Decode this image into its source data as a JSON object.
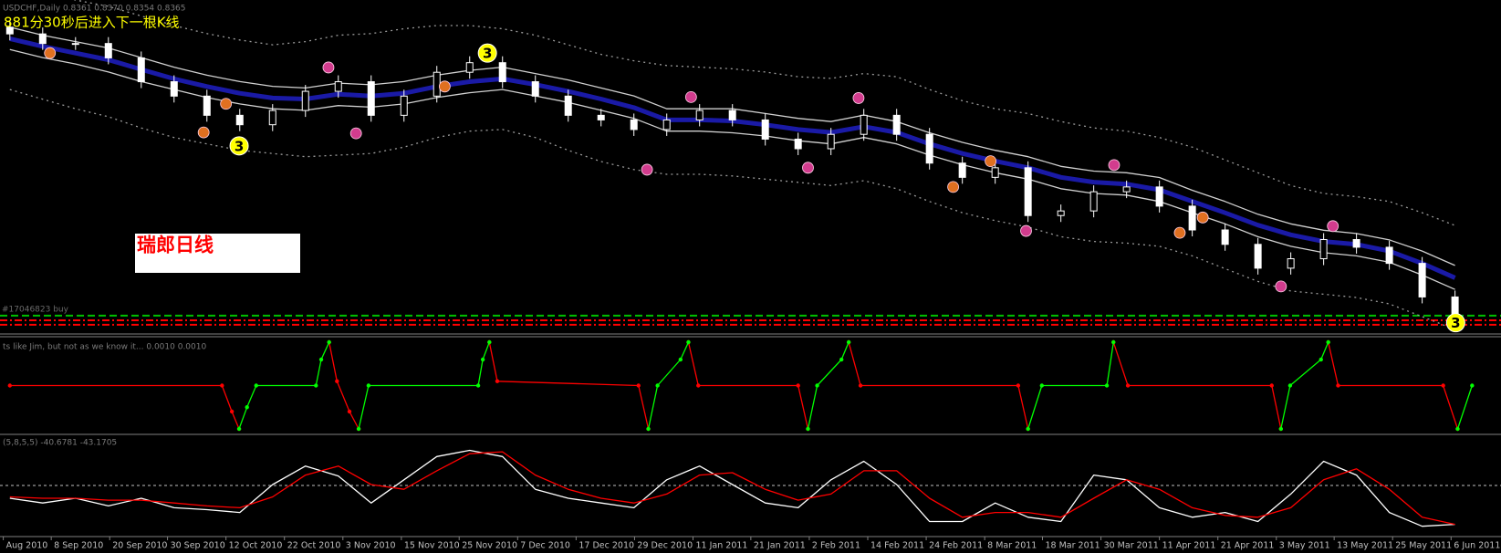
{
  "chart_data": [
    {
      "type": "candlestick",
      "title": "USDCHF,Daily  0.8361 0.8370 0.8354 0.8365",
      "annotations": [
        "881分30秒后进入下一根K线",
        "瑞郎日线"
      ],
      "level_label": "#17046823 buy",
      "xlim": [
        -1.5,
        227
      ],
      "ylim": [
        0.82,
        1.026
      ],
      "color": "#ffffff",
      "x": [
        0,
        5,
        10,
        15,
        20,
        25,
        30,
        35,
        40,
        45,
        50,
        55,
        60,
        65,
        70,
        75,
        80,
        85,
        90,
        95,
        100,
        105,
        110,
        115,
        120,
        125,
        130,
        135,
        140,
        145,
        150,
        155,
        160,
        165,
        170,
        175,
        180,
        185,
        190,
        195,
        200,
        205,
        210,
        215,
        220
      ],
      "open": [
        1.009,
        1.0048,
        0.9988,
        0.9988,
        0.9898,
        0.9749,
        0.9659,
        0.9539,
        0.948,
        0.9569,
        0.9689,
        0.9749,
        0.9539,
        0.9659,
        0.9808,
        0.9868,
        0.9749,
        0.9659,
        0.9539,
        0.951,
        0.945,
        0.951,
        0.9569,
        0.951,
        0.939,
        0.933,
        0.942,
        0.9539,
        0.942,
        0.924,
        0.9151,
        0.9211,
        0.8912,
        0.8941,
        0.9061,
        0.9091,
        0.8971,
        0.8822,
        0.8732,
        0.8583,
        0.8642,
        0.8762,
        0.8714,
        0.8613,
        0.8403
      ],
      "high": [
        1.013,
        1.0088,
        1.0028,
        1.0028,
        0.9938,
        0.9789,
        0.9699,
        0.9579,
        0.9609,
        0.9729,
        0.9789,
        0.9789,
        0.9699,
        0.9848,
        0.9908,
        0.9908,
        0.9789,
        0.9699,
        0.9579,
        0.955,
        0.955,
        0.9609,
        0.9609,
        0.955,
        0.943,
        0.946,
        0.9579,
        0.9579,
        0.946,
        0.928,
        0.9251,
        0.9251,
        0.8981,
        0.9101,
        0.9131,
        0.9131,
        0.9011,
        0.8862,
        0.8772,
        0.8682,
        0.8802,
        0.8802,
        0.8754,
        0.8653,
        0.8443
      ],
      "low": [
        1.0008,
        0.9948,
        0.9948,
        0.9858,
        0.9709,
        0.9619,
        0.9499,
        0.944,
        0.944,
        0.9529,
        0.9649,
        0.9499,
        0.9499,
        0.9619,
        0.9768,
        0.9709,
        0.9619,
        0.9499,
        0.947,
        0.941,
        0.941,
        0.947,
        0.947,
        0.935,
        0.929,
        0.929,
        0.938,
        0.938,
        0.92,
        0.9111,
        0.9111,
        0.8872,
        0.8872,
        0.8901,
        0.9021,
        0.8931,
        0.8782,
        0.8692,
        0.8543,
        0.8543,
        0.8602,
        0.8674,
        0.8573,
        0.8363,
        0.8244
      ],
      "close": [
        1.0048,
        0.9988,
        0.9988,
        0.9898,
        0.9749,
        0.9659,
        0.9539,
        0.948,
        0.9569,
        0.9689,
        0.9749,
        0.9539,
        0.9659,
        0.9808,
        0.9868,
        0.9749,
        0.9659,
        0.9539,
        0.951,
        0.945,
        0.951,
        0.9569,
        0.951,
        0.939,
        0.933,
        0.942,
        0.9539,
        0.942,
        0.924,
        0.9151,
        0.9211,
        0.8912,
        0.8941,
        0.9061,
        0.9091,
        0.8971,
        0.8822,
        0.8732,
        0.8583,
        0.8642,
        0.8762,
        0.8714,
        0.8613,
        0.8403,
        0.8284
      ],
      "series": [
        {
          "color": "#9a9a9a",
          "style": "dotted",
          "values": [
            1.035,
            1.03,
            1.026,
            1.022,
            1.016,
            1.01,
            1.005,
            1.001,
            0.998,
            1.0,
            1.004,
            1.005,
            1.008,
            1.01,
            1.01,
            1.008,
            1.004,
            0.998,
            0.992,
            0.988,
            0.985,
            0.984,
            0.983,
            0.981,
            0.978,
            0.977,
            0.98,
            0.978,
            0.97,
            0.963,
            0.958,
            0.955,
            0.95,
            0.946,
            0.944,
            0.94,
            0.934,
            0.926,
            0.918,
            0.91,
            0.905,
            0.903,
            0.9,
            0.893,
            0.885
          ]
        },
        {
          "color": "#9a9a9a",
          "style": "dotted",
          "values": [
            0.97,
            0.964,
            0.958,
            0.953,
            0.946,
            0.94,
            0.936,
            0.932,
            0.93,
            0.928,
            0.929,
            0.93,
            0.934,
            0.94,
            0.944,
            0.945,
            0.94,
            0.932,
            0.925,
            0.92,
            0.917,
            0.917,
            0.916,
            0.914,
            0.912,
            0.91,
            0.913,
            0.908,
            0.9,
            0.893,
            0.888,
            0.884,
            0.878,
            0.875,
            0.874,
            0.872,
            0.866,
            0.858,
            0.85,
            0.844,
            0.842,
            0.84,
            0.836,
            0.828,
            0.82
          ]
        },
        {
          "color": "#1a1aa6",
          "style": "thick",
          "values": [
            1.0018,
            0.997,
            0.9928,
            0.9886,
            0.9826,
            0.9767,
            0.9719,
            0.9677,
            0.9647,
            0.9641,
            0.9671,
            0.9659,
            0.9677,
            0.9719,
            0.9749,
            0.9767,
            0.9731,
            0.9689,
            0.9641,
            0.9587,
            0.951,
            0.951,
            0.9504,
            0.948,
            0.945,
            0.9432,
            0.9468,
            0.9432,
            0.936,
            0.93,
            0.9252,
            0.9211,
            0.9151,
            0.9121,
            0.9109,
            0.9073,
            0.9001,
            0.8929,
            0.8852,
            0.8792,
            0.875,
            0.8732,
            0.869,
            0.8613,
            0.8523
          ]
        },
        {
          "color": "#d0d0d0",
          "style": "solid",
          "values": [
            1.009,
            1.004,
            1.0,
            0.996,
            0.99,
            0.984,
            0.979,
            0.975,
            0.972,
            0.971,
            0.974,
            0.973,
            0.975,
            0.979,
            0.982,
            0.984,
            0.98,
            0.976,
            0.971,
            0.966,
            0.958,
            0.958,
            0.958,
            0.955,
            0.952,
            0.95,
            0.954,
            0.95,
            0.943,
            0.937,
            0.932,
            0.928,
            0.922,
            0.919,
            0.918,
            0.915,
            0.907,
            0.9,
            0.892,
            0.886,
            0.882,
            0.88,
            0.876,
            0.869,
            0.86
          ]
        },
        {
          "color": "#d0d0d0",
          "style": "solid",
          "values": [
            0.995,
            0.99,
            0.986,
            0.981,
            0.975,
            0.97,
            0.965,
            0.961,
            0.958,
            0.957,
            0.96,
            0.959,
            0.961,
            0.965,
            0.968,
            0.97,
            0.966,
            0.962,
            0.957,
            0.952,
            0.944,
            0.944,
            0.943,
            0.941,
            0.938,
            0.936,
            0.94,
            0.936,
            0.929,
            0.923,
            0.918,
            0.914,
            0.908,
            0.905,
            0.904,
            0.9,
            0.893,
            0.886,
            0.878,
            0.872,
            0.868,
            0.866,
            0.862,
            0.854,
            0.845
          ]
        }
      ],
      "levels": [
        {
          "value": 0.8286,
          "color": "#00c000"
        },
        {
          "value": 0.8257,
          "color": "#ff0000"
        },
        {
          "value": 0.8229,
          "color": "#ff0000"
        }
      ],
      "markers": [
        {
          "x": 6.1,
          "y": 0.9928,
          "color": "#e07020"
        },
        {
          "x": 29.5,
          "y": 0.9432,
          "color": "#e07020"
        },
        {
          "x": 32.9,
          "y": 0.9611,
          "color": "#e07020"
        },
        {
          "x": 66.2,
          "y": 0.9719,
          "color": "#e07020"
        },
        {
          "x": 143.6,
          "y": 0.9091,
          "color": "#e07020"
        },
        {
          "x": 149.3,
          "y": 0.9252,
          "color": "#e07020"
        },
        {
          "x": 178.1,
          "y": 0.8804,
          "color": "#e07020"
        },
        {
          "x": 181.6,
          "y": 0.89,
          "color": "#e07020"
        },
        {
          "x": 48.5,
          "y": 0.9838,
          "color": "#d23c8e"
        },
        {
          "x": 52.7,
          "y": 0.9426,
          "color": "#d23c8e"
        },
        {
          "x": 97.0,
          "y": 0.9199,
          "color": "#d23c8e"
        },
        {
          "x": 103.7,
          "y": 0.9653,
          "color": "#d23c8e"
        },
        {
          "x": 121.5,
          "y": 0.9211,
          "color": "#d23c8e"
        },
        {
          "x": 129.2,
          "y": 0.9647,
          "color": "#d23c8e"
        },
        {
          "x": 154.7,
          "y": 0.8816,
          "color": "#d23c8e"
        },
        {
          "x": 168.1,
          "y": 0.9228,
          "color": "#d23c8e"
        },
        {
          "x": 193.5,
          "y": 0.8469,
          "color": "#d23c8e"
        },
        {
          "x": 201.4,
          "y": 0.8846,
          "color": "#d23c8e"
        },
        {
          "x": 34.9,
          "y": 0.9348,
          "color": "#ffff00",
          "label": "3"
        },
        {
          "x": 72.7,
          "y": 0.9928,
          "color": "#ffff00",
          "label": "3"
        },
        {
          "x": 220.1,
          "y": 0.8242,
          "color": "#ffff00",
          "label": "3"
        }
      ]
    },
    {
      "type": "line",
      "title": "ts like Jim, but not as we know it...  0.0010 0.0010",
      "xlim": [
        -1.5,
        227
      ],
      "ylim": [
        0,
        1
      ],
      "dots": true,
      "x": [
        0,
        32.3,
        33.8,
        34.9,
        36.1,
        37.5,
        46.6,
        47.4,
        48.6,
        49.8,
        51.7,
        53.1,
        54.6,
        71.3,
        72.0,
        73.0,
        74.2,
        95.7,
        97.2,
        98.6,
        102.1,
        103.3,
        104.8,
        120.0,
        121.5,
        122.9,
        126.6,
        127.7,
        129.5,
        153.5,
        155.0,
        157.1,
        167.0,
        168.0,
        170.2,
        192.1,
        193.5,
        194.9,
        199.6,
        200.7,
        202.2,
        218.2,
        220.4,
        222.6
      ],
      "series": [
        {
          "color": "#ff0000",
          "style": "solid",
          "values": [
            0.5,
            0.5,
            0.2,
            0,
            null,
            null,
            null,
            null,
            1,
            0.55,
            0.2,
            0,
            null,
            null,
            null,
            1,
            0.55,
            0.5,
            0,
            null,
            null,
            1,
            0.5,
            0.5,
            0,
            null,
            null,
            1,
            0.5,
            0.5,
            0,
            null,
            null,
            1,
            0.5,
            0.5,
            0,
            null,
            null,
            1,
            0.5,
            0.5,
            0,
            null
          ]
        },
        {
          "color": "#00ff00",
          "style": "solid",
          "values": [
            null,
            null,
            null,
            0,
            0.25,
            0.5,
            0.5,
            0.8,
            1,
            null,
            null,
            0,
            0.5,
            0.5,
            0.8,
            1,
            null,
            null,
            0,
            0.5,
            0.8,
            1,
            null,
            null,
            0,
            0.5,
            0.8,
            1,
            null,
            null,
            0,
            0.5,
            0.5,
            1,
            null,
            null,
            0,
            0.5,
            0.8,
            1,
            null,
            null,
            0,
            0.5
          ]
        }
      ]
    },
    {
      "type": "line",
      "title": "(5,8,5,5) -40.6781 -43.1705",
      "xlim": [
        -1.5,
        227
      ],
      "ylim": [
        -100,
        100
      ],
      "x": [
        0,
        5,
        10,
        15,
        20,
        25,
        30,
        35,
        40,
        45,
        50,
        55,
        60,
        65,
        70,
        75,
        80,
        85,
        90,
        95,
        100,
        105,
        110,
        115,
        120,
        125,
        130,
        135,
        140,
        145,
        150,
        155,
        160,
        165,
        170,
        175,
        180,
        185,
        190,
        195,
        200,
        205,
        210,
        215,
        220
      ],
      "series": [
        {
          "color": "#ffffff",
          "style": "solid",
          "values": [
            -27,
            -37,
            -27,
            -43,
            -27,
            -47,
            -51,
            -57,
            2,
            41,
            20,
            -37,
            12,
            61,
            74,
            61,
            -8,
            -27,
            -37,
            -47,
            12,
            41,
            2,
            -37,
            -47,
            12,
            51,
            2,
            -76,
            -76,
            -37,
            -67,
            -76,
            22,
            12,
            -47,
            -67,
            -57,
            -76,
            -18,
            51,
            22,
            -57,
            -86,
            -82
          ]
        },
        {
          "color": "#ff0000",
          "style": "solid",
          "values": [
            -24,
            -27,
            -27,
            -31,
            -31,
            -37,
            -43,
            -47,
            -24,
            22,
            41,
            2,
            -8,
            31,
            67,
            71,
            22,
            -8,
            -27,
            -37,
            -18,
            22,
            27,
            -8,
            -31,
            -18,
            31,
            31,
            -27,
            -67,
            -57,
            -57,
            -67,
            -27,
            12,
            -8,
            -47,
            -63,
            -67,
            -47,
            12,
            35,
            -8,
            -67,
            -82
          ]
        }
      ],
      "levels": [
        {
          "value": 0,
          "color": "#c0c0c0"
        }
      ],
      "xticks": [
        {
          "value": -1,
          "label": "Aug 2010"
        },
        {
          "value": 6.3,
          "label": "8 Sep 2010"
        },
        {
          "value": 15.2,
          "label": "20 Sep 2010"
        },
        {
          "value": 24.0,
          "label": "30 Sep 2010"
        },
        {
          "value": 32.9,
          "label": "12 Oct 2010"
        },
        {
          "value": 41.8,
          "label": "22 Oct 2010"
        },
        {
          "value": 50.7,
          "label": "3 Nov 2010"
        },
        {
          "value": 59.6,
          "label": "15 Nov 2010"
        },
        {
          "value": 68.4,
          "label": "25 Nov 2010"
        },
        {
          "value": 77.3,
          "label": "7 Dec 2010"
        },
        {
          "value": 86.2,
          "label": "17 Dec 2010"
        },
        {
          "value": 95.1,
          "label": "29 Dec 2010"
        },
        {
          "value": 104.0,
          "label": "11 Jan 2011"
        },
        {
          "value": 112.8,
          "label": "21 Jan 2011"
        },
        {
          "value": 121.7,
          "label": "2 Feb 2011"
        },
        {
          "value": 130.6,
          "label": "14 Feb 2011"
        },
        {
          "value": 139.5,
          "label": "24 Feb 2011"
        },
        {
          "value": 148.4,
          "label": "8 Mar 2011"
        },
        {
          "value": 157.2,
          "label": "18 Mar 2011"
        },
        {
          "value": 166.1,
          "label": "30 Mar 2011"
        },
        {
          "value": 175.0,
          "label": "11 Apr 2011"
        },
        {
          "value": 183.9,
          "label": "21 Apr 2011"
        },
        {
          "value": 192.8,
          "label": "3 May 2011"
        },
        {
          "value": 201.6,
          "label": "13 May 2011"
        },
        {
          "value": 210.5,
          "label": "25 May 2011"
        },
        {
          "value": 219.4,
          "label": "6 Jun 2011"
        }
      ]
    }
  ]
}
